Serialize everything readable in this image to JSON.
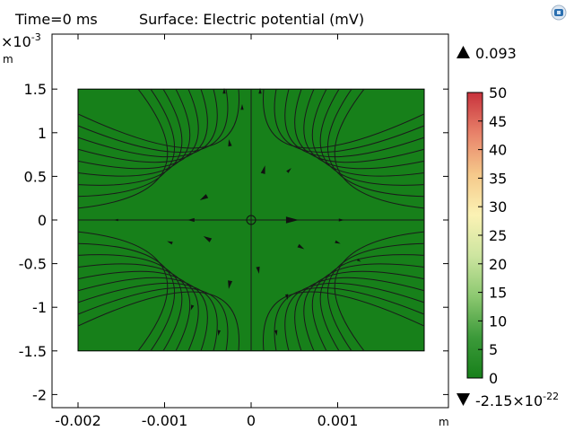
{
  "header": {
    "time_label": "Time=0 ms",
    "title": "Surface: Electric potential (mV)"
  },
  "chart_data": {
    "type": "heatmap",
    "title": "Surface: Electric potential (mV)",
    "subtitle": "Time=0 ms",
    "x_axis": {
      "unit": "m",
      "range": [
        -0.0022,
        0.0022
      ],
      "ticks": [
        -0.002,
        -0.001,
        0,
        0.001
      ],
      "tick_labels": [
        "-0.002",
        "-0.001",
        "0",
        "0.001"
      ]
    },
    "y_axis": {
      "unit": "m",
      "multiplier": "×10",
      "multiplier_exponent": "-3",
      "range": [
        -2.15,
        2.1
      ],
      "ticks": [
        1.5,
        1,
        0.5,
        0,
        -0.5,
        -1,
        -1.5,
        -2
      ],
      "tick_labels": [
        "1.5",
        "1",
        "0.5",
        "0",
        "-0.5",
        "-1",
        "-1.5",
        "-2"
      ]
    },
    "domain": {
      "x": [
        -0.002,
        0.002
      ],
      "y": [
        -1.5,
        1.5
      ]
    },
    "surface_color": "#17801a",
    "streamline_color": "#1a1a1a",
    "colorbar": {
      "min": 0,
      "max": 50,
      "ticks": [
        50,
        45,
        40,
        35,
        30,
        25,
        20,
        15,
        10,
        5,
        0
      ],
      "tick_labels": [
        "50",
        "45",
        "40",
        "35",
        "30",
        "25",
        "20",
        "15",
        "10",
        "5",
        "0"
      ],
      "colors": [
        "#c8323c",
        "#e8826a",
        "#f5c88a",
        "#fbf2b4",
        "#cde5a0",
        "#8cc870",
        "#3c9a3a",
        "#17801a"
      ]
    },
    "max_marker": "0.093",
    "min_marker_mantissa": "-2.15×10",
    "min_marker_exponent": "-22"
  }
}
